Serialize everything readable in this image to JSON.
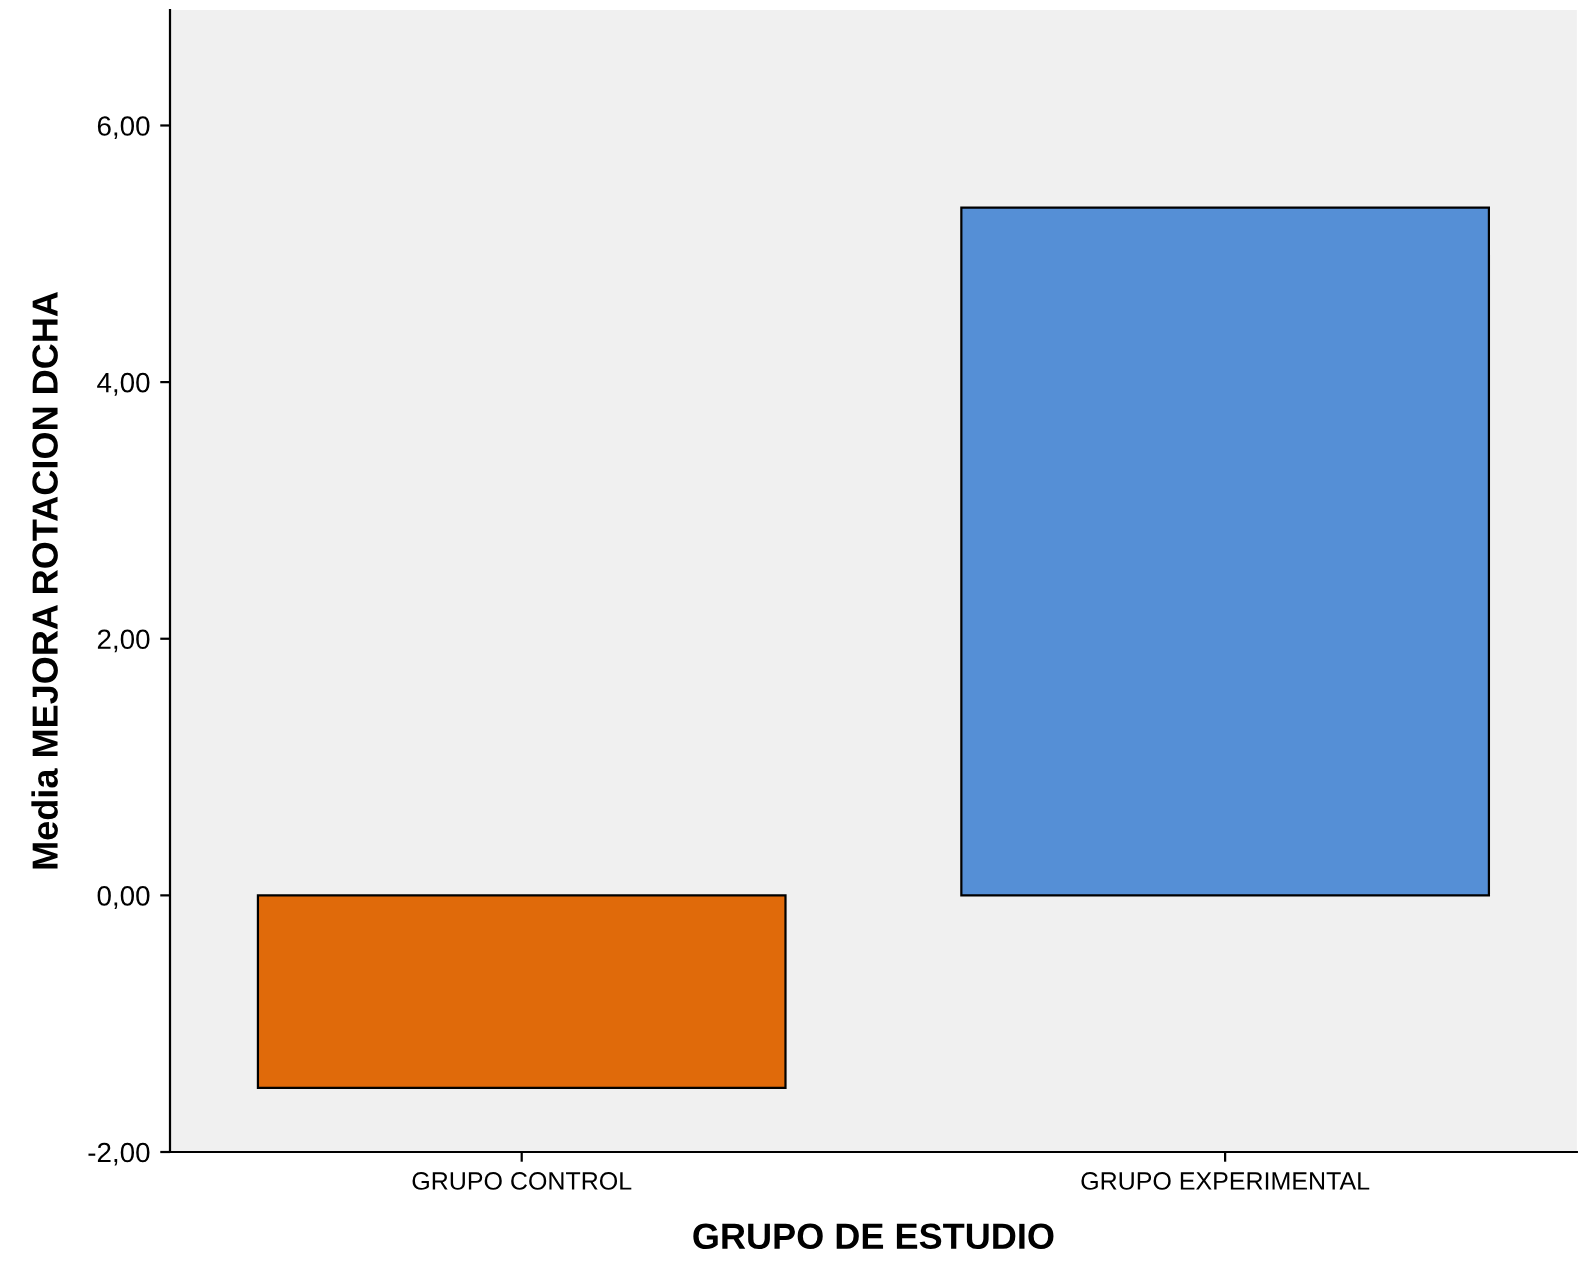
{
  "chart_data": {
    "type": "bar",
    "xlabel": "GRUPO DE ESTUDIO",
    "ylabel": "Media MEJORA ROTACION DCHA",
    "categories": [
      "GRUPO CONTROL",
      "GRUPO EXPERIMENTAL"
    ],
    "values": [
      -1.5,
      5.36
    ],
    "colors": [
      "#e06a0a",
      "#558fd6"
    ],
    "ylim": [
      -2,
      6.9
    ],
    "yticks": [
      {
        "value": -2,
        "label": "-2,00"
      },
      {
        "value": 0,
        "label": "0,00"
      },
      {
        "value": 2,
        "label": "2,00"
      },
      {
        "value": 4,
        "label": "4,00"
      },
      {
        "value": 6,
        "label": "6,00"
      }
    ],
    "grid": false,
    "legend": false
  }
}
